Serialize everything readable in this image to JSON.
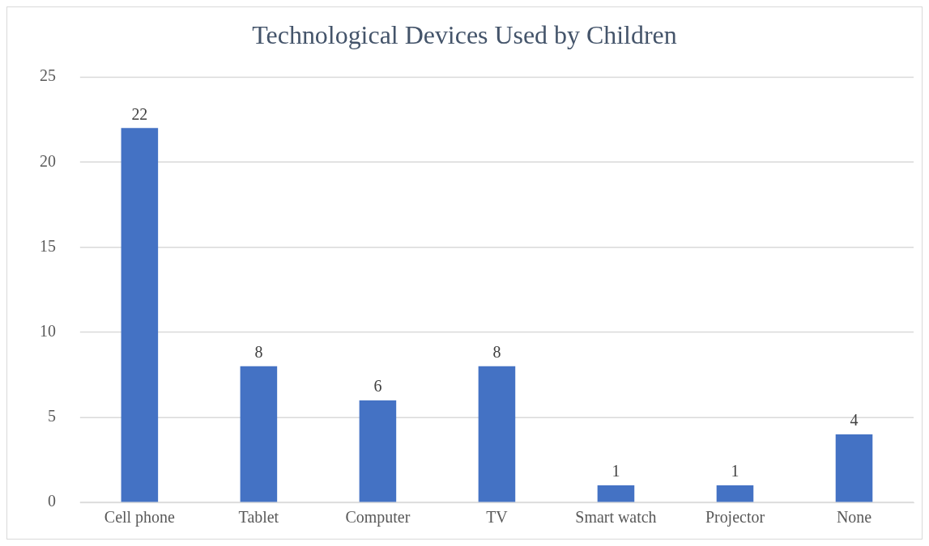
{
  "chart_data": {
    "type": "bar",
    "title": "Technological Devices Used by Children",
    "categories": [
      "Cell phone",
      "Tablet",
      "Computer",
      "TV",
      "Smart watch",
      "Projector",
      "None"
    ],
    "values": [
      22,
      8,
      6,
      8,
      1,
      1,
      4
    ],
    "color": "#4472c4",
    "ylim": [
      0,
      25
    ],
    "yticks": [
      0,
      5,
      10,
      15,
      20,
      25
    ],
    "grid": "y",
    "data_labels": true,
    "legend": false
  }
}
